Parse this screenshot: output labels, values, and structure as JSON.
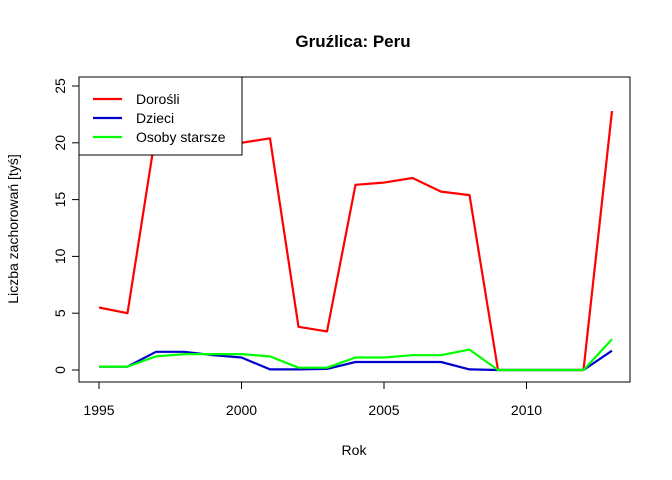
{
  "chart_data": {
    "type": "line",
    "title": "Gruźlica: Peru",
    "xlabel": "Rok",
    "ylabel": "Liczba zachorowań [tyś]",
    "xlim": [
      1995,
      2013
    ],
    "ylim": [
      0,
      25
    ],
    "x_ticks": [
      1995,
      2000,
      2005,
      2010
    ],
    "y_ticks": [
      0,
      5,
      10,
      15,
      20,
      25
    ],
    "legend_position": "top-left",
    "x": [
      1995,
      1996,
      1997,
      1998,
      1999,
      2000,
      2001,
      2002,
      2003,
      2004,
      2005,
      2006,
      2007,
      2008,
      2009,
      2010,
      2011,
      2012,
      2013
    ],
    "series": [
      {
        "name": "Dorośli",
        "color": "#ff0000",
        "values": [
          5.5,
          5.0,
          21.0,
          20.5,
          20.0,
          20.0,
          20.4,
          3.8,
          3.4,
          16.3,
          16.5,
          16.9,
          15.7,
          15.4,
          0.0,
          0.0,
          0.0,
          0.0,
          22.8
        ]
      },
      {
        "name": "Dzieci",
        "color": "#0000cd",
        "values": [
          0.3,
          0.3,
          1.6,
          1.6,
          1.3,
          1.1,
          0.05,
          0.05,
          0.1,
          0.7,
          0.7,
          0.7,
          0.7,
          0.05,
          0.0,
          0.0,
          0.0,
          0.0,
          1.7
        ]
      },
      {
        "name": "Osoby starsze",
        "color": "#00ff00",
        "values": [
          0.3,
          0.3,
          1.2,
          1.4,
          1.4,
          1.4,
          1.2,
          0.2,
          0.2,
          1.1,
          1.1,
          1.3,
          1.3,
          1.8,
          0.0,
          0.0,
          0.0,
          0.0,
          2.7
        ]
      }
    ]
  }
}
